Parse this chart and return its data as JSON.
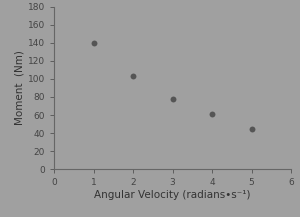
{
  "x": [
    1,
    2,
    3,
    4,
    5
  ],
  "y": [
    140,
    103,
    78,
    61,
    45
  ],
  "xlabel": "Angular Velocity (radians•s⁻¹)",
  "ylabel": "Moment  (Nm)",
  "xlim": [
    0,
    6
  ],
  "ylim": [
    0,
    180
  ],
  "xticks": [
    0,
    1,
    2,
    3,
    4,
    5,
    6
  ],
  "yticks": [
    0,
    20,
    40,
    60,
    80,
    100,
    120,
    140,
    160,
    180
  ],
  "background_color": "#a0a0a0",
  "marker_color": "#555555",
  "marker_size": 18,
  "tick_fontsize": 6.5,
  "label_fontsize": 7.5,
  "tick_color": "#444444",
  "label_color": "#333333",
  "spine_color": "#666666"
}
